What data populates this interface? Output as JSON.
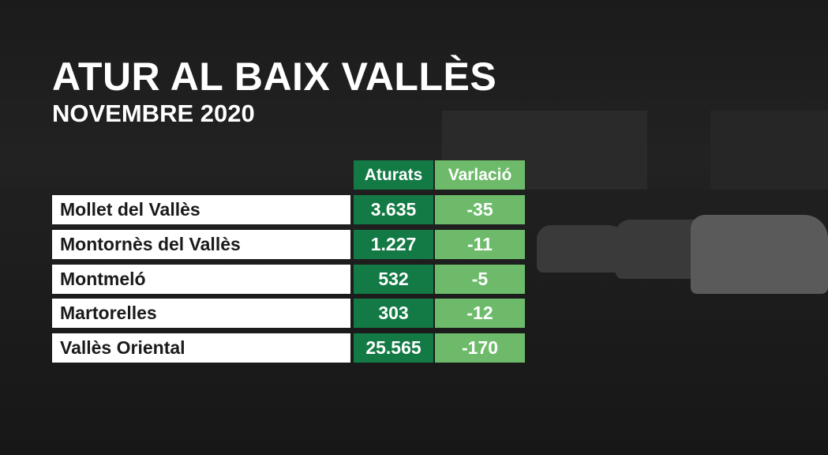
{
  "title": "ATUR AL BAIX VALLÈS",
  "subtitle": "NOVEMBRE 2020",
  "colors": {
    "dark_green": "#137a45",
    "light_green": "#6dbb6a",
    "row_bg": "#ffffff"
  },
  "table": {
    "headers": [
      "Aturats",
      "Varlació"
    ],
    "rows": [
      {
        "name": "Mollet del Vallès",
        "aturats": "3.635",
        "variacio": "-35"
      },
      {
        "name": "Montornès del Vallès",
        "aturats": "1.227",
        "variacio": "-11"
      },
      {
        "name": "Montmeló",
        "aturats": "532",
        "variacio": "-5"
      },
      {
        "name": "Martorelles",
        "aturats": "303",
        "variacio": "-12"
      },
      {
        "name": "Vallès Oriental",
        "aturats": "25.565",
        "variacio": "-170"
      }
    ]
  }
}
